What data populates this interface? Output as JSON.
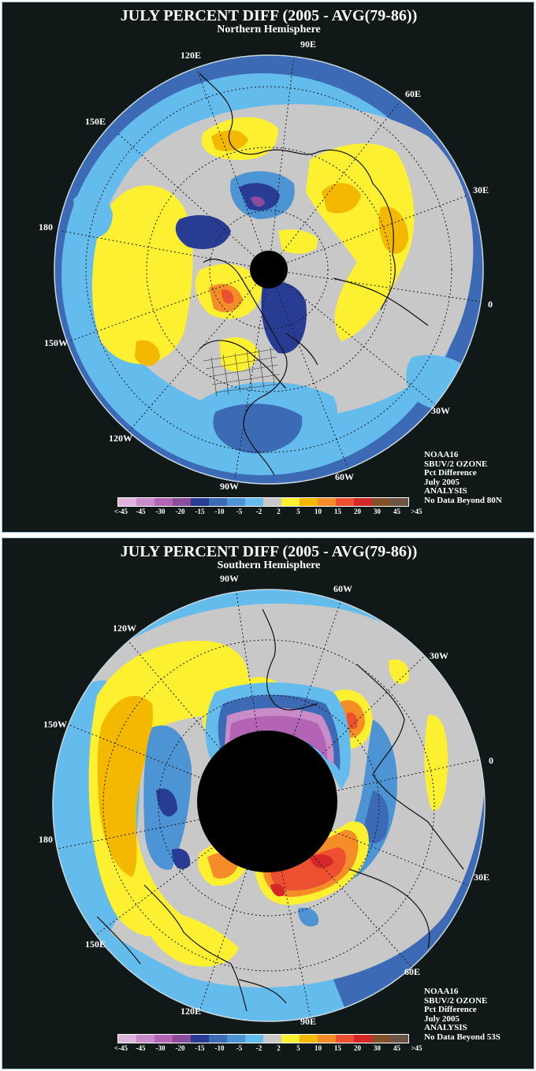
{
  "north": {
    "title": "JULY PERCENT DIFF (2005 - AVG(79-86))",
    "subtitle": "Northern Hemisphere",
    "lon_labels": [
      "90E",
      "120E",
      "60E",
      "150E",
      "30E",
      "180",
      "0",
      "150W",
      "30W",
      "120W",
      "90W",
      "60W"
    ],
    "info_lines": [
      "NOAA16",
      "SBUV/2 OZONE",
      "Pct Difference",
      "July 2005",
      "ANALYSIS",
      "No Data Beyond 80N"
    ]
  },
  "south": {
    "title": "JULY PERCENT DIFF (2005 - AVG(79-86))",
    "subtitle": "Southern Hemisphere",
    "lon_labels": [
      "90W",
      "60W",
      "120W",
      "30W",
      "150W",
      "0",
      "180",
      "30E",
      "150E",
      "60E",
      "120E",
      "90E"
    ],
    "info_lines": [
      "NOAA16",
      "SBUV/2 OZONE",
      "Pct Difference",
      "July 2005",
      "ANALYSIS",
      "No Data Beyond 53S"
    ]
  },
  "legend": {
    "tick_labels": [
      "<-45",
      "-45",
      "-30",
      "-20",
      "-15",
      "-10",
      "-5",
      "-2",
      "2",
      "5",
      "10",
      "15",
      "20",
      "30",
      "45",
      ">45"
    ],
    "colors": [
      "#dcb4dc",
      "#c88cc8",
      "#b464b4",
      "#8c4c9c",
      "#283c94",
      "#3c6ab4",
      "#4c94d4",
      "#64bcec",
      "#c8c8c8",
      "#fcf030",
      "#f4b800",
      "#f48c28",
      "#ec5030",
      "#d42828",
      "#845028",
      "#6c5444"
    ]
  },
  "colors": {
    "background": "#101818",
    "ocean_band_dark": "#3c6ab4",
    "ocean_band_light": "#64bcec",
    "neutral": "#c8c8c8",
    "positive": "#fcf030",
    "positive_strong": "#f4b800"
  }
}
